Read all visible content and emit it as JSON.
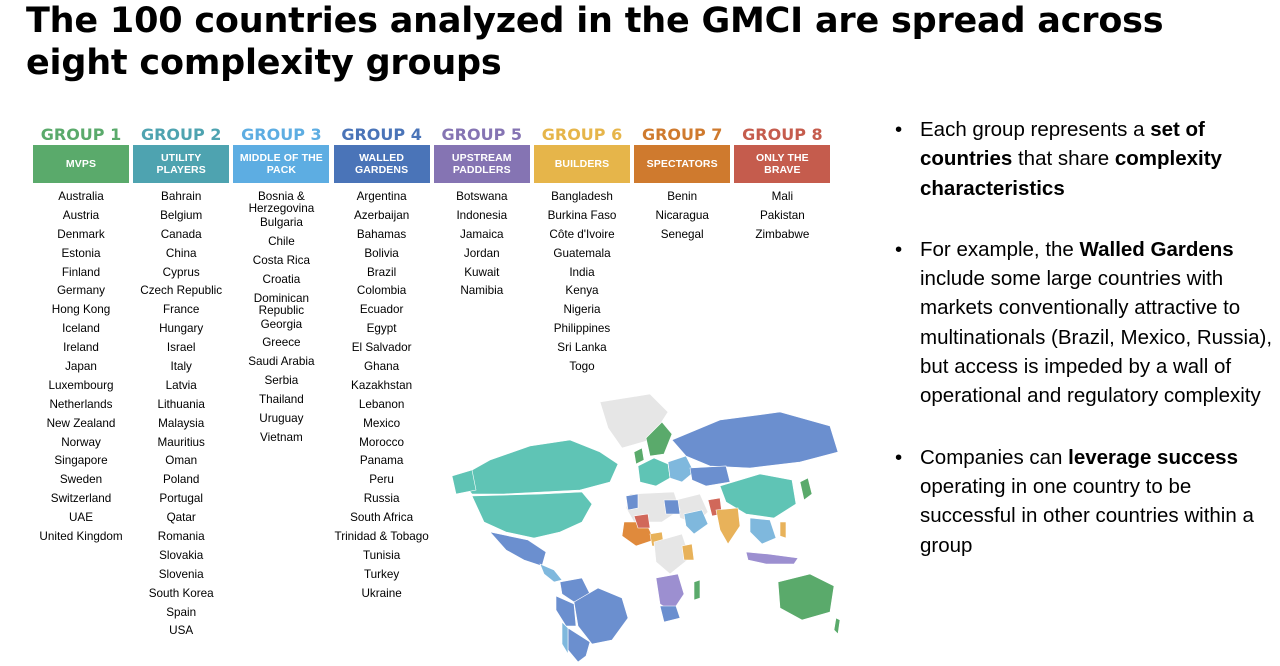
{
  "title": "The 100 countries analyzed in the GMCI are spread across eight complexity groups",
  "groups": [
    {
      "number": "GROUP 1",
      "name": "MVPS",
      "color": "#5aaa6b",
      "countries": [
        "Australia",
        "Austria",
        "Denmark",
        "Estonia",
        "Finland",
        "Germany",
        "Hong Kong",
        "Iceland",
        "Ireland",
        "Japan",
        "Luxembourg",
        "Netherlands",
        "New Zealand",
        "Norway",
        "Singapore",
        "Sweden",
        "Switzerland",
        "UAE",
        "United Kingdom"
      ]
    },
    {
      "number": "GROUP 2",
      "name": "UTILITY PLAYERS",
      "color": "#4ea3b0",
      "countries": [
        "Bahrain",
        "Belgium",
        "Canada",
        "China",
        "Cyprus",
        "Czech Republic",
        "France",
        "Hungary",
        "Israel",
        "Italy",
        "Latvia",
        "Lithuania",
        "Malaysia",
        "Mauritius",
        "Oman",
        "Poland",
        "Portugal",
        "Qatar",
        "Romania",
        "Slovakia",
        "Slovenia",
        "South Korea",
        "Spain",
        "USA"
      ]
    },
    {
      "number": "GROUP 3",
      "name": "MIDDLE OF THE PACK",
      "color": "#5dade2",
      "countries": [
        "Bosnia & Herzegovina",
        "Bulgaria",
        "Chile",
        "Costa Rica",
        "Croatia",
        "Dominican Republic",
        "Georgia",
        "Greece",
        "Saudi Arabia",
        "Serbia",
        "Thailand",
        "Uruguay",
        "Vietnam"
      ]
    },
    {
      "number": "GROUP 4",
      "name": "WALLED GARDENS",
      "color": "#4a74b8",
      "countries": [
        "Argentina",
        "Azerbaijan",
        "Bahamas",
        "Bolivia",
        "Brazil",
        "Colombia",
        "Ecuador",
        "Egypt",
        "El Salvador",
        "Ghana",
        "Kazakhstan",
        "Lebanon",
        "Mexico",
        "Morocco",
        "Panama",
        "Peru",
        "Russia",
        "South Africa",
        "Trinidad & Tobago",
        "Tunisia",
        "Turkey",
        "Ukraine"
      ]
    },
    {
      "number": "GROUP 5",
      "name": "UPSTREAM PADDLERS",
      "color": "#8574b3",
      "countries": [
        "Botswana",
        "Indonesia",
        "Jamaica",
        "Jordan",
        "Kuwait",
        "Namibia"
      ]
    },
    {
      "number": "GROUP 6",
      "name": "BUILDERS",
      "color": "#e6b54a",
      "countries": [
        "Bangladesh",
        "Burkina Faso",
        "Côte d'Ivoire",
        "Guatemala",
        "India",
        "Kenya",
        "Nigeria",
        "Philippines",
        "Sri Lanka",
        "Togo"
      ]
    },
    {
      "number": "GROUP 7",
      "name": "SPECTATORS",
      "color": "#cf7a2e",
      "countries": [
        "Benin",
        "Nicaragua",
        "Senegal"
      ]
    },
    {
      "number": "GROUP 8",
      "name": "ONLY THE BRAVE",
      "color": "#c55c4d",
      "countries": [
        "Mali",
        "Pakistan",
        "Zimbabwe"
      ]
    }
  ],
  "bullets": [
    [
      {
        "t": "Each group represents a ",
        "b": false
      },
      {
        "t": "set of countries",
        "b": true
      },
      {
        "t": " that share ",
        "b": false
      },
      {
        "t": "complexity characteristics",
        "b": true
      }
    ],
    [
      {
        "t": "For example, the ",
        "b": false
      },
      {
        "t": "Walled Gardens",
        "b": true
      },
      {
        "t": " include some large countries with markets conventionally attractive to multinationals (Brazil, Mexico, Russia), but access is impeded by a wall of operational and regulatory complexity",
        "b": false
      }
    ],
    [
      {
        "t": "Companies can ",
        "b": false
      },
      {
        "t": "leverage success",
        "b": true
      },
      {
        "t": " operating in one country to be successful in other countries within a group",
        "b": false
      }
    ]
  ],
  "map_legend_colors": {
    "unanalyzed": "#e6e6e6",
    "group1": "#5aaa6b",
    "group2": "#5fc4b5",
    "group3": "#7fb8dd",
    "group4": "#6b8fcf",
    "group5": "#9c8fd0",
    "group6": "#e8b25a",
    "group7": "#e08a3c",
    "group8": "#d1685a"
  }
}
